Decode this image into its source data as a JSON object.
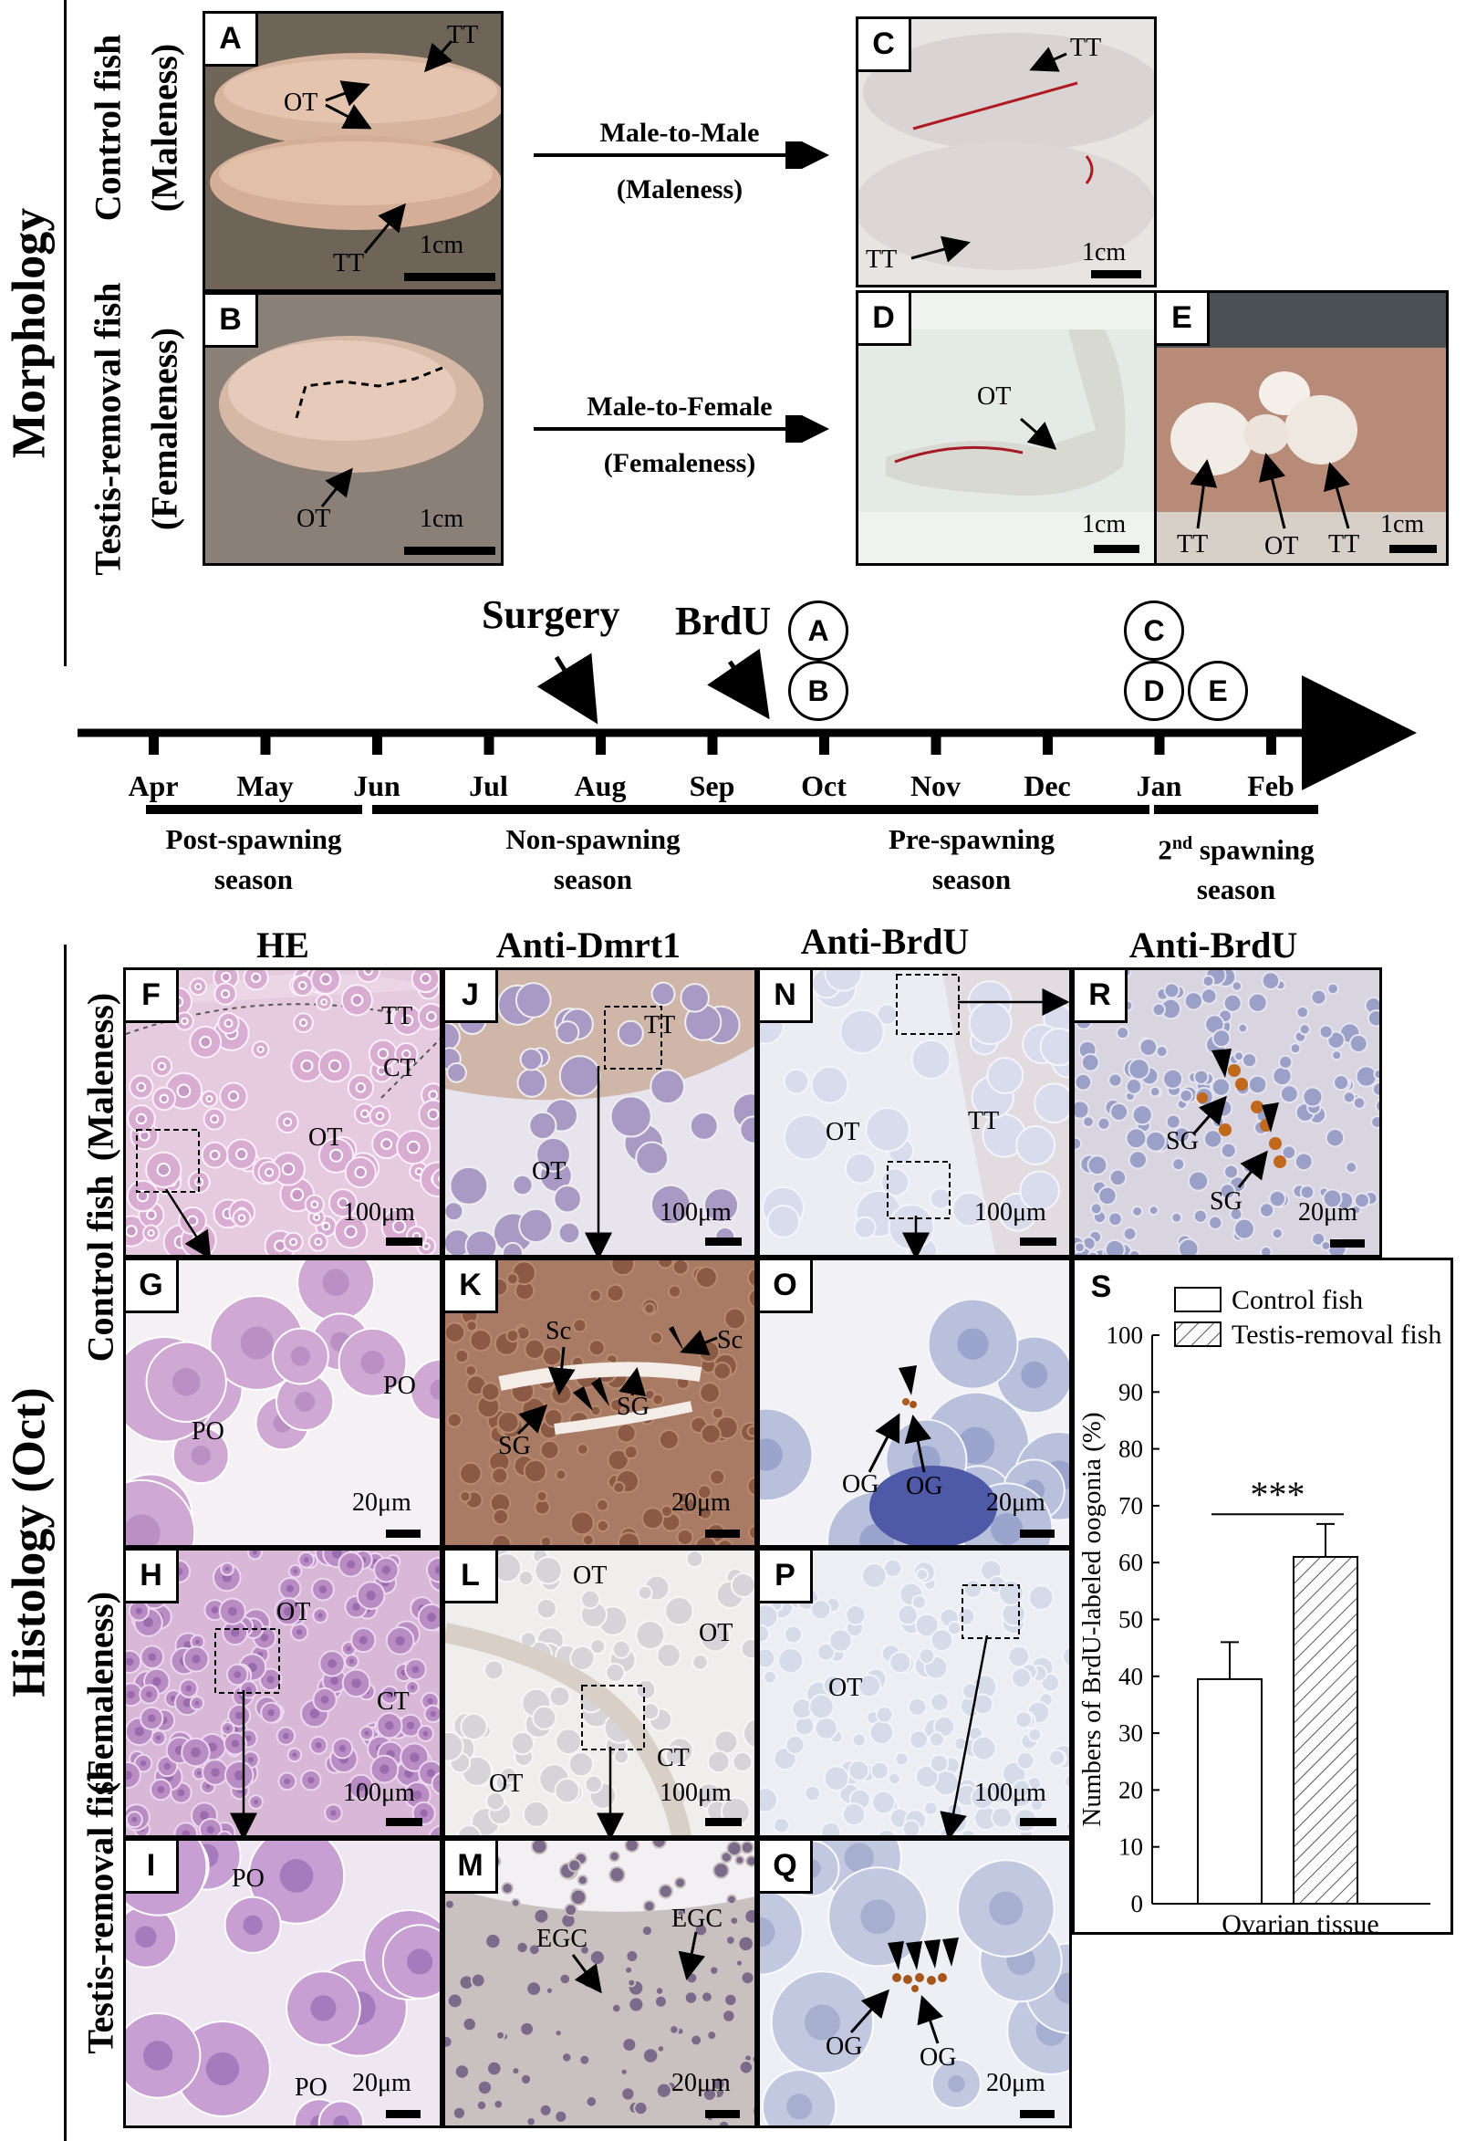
{
  "side_labels": {
    "morphology": "Morphology",
    "histology": "Histology (Oct)"
  },
  "row_labels": {
    "control_fish": "Control  fish",
    "maleness": "(Maleness)",
    "testis_removal_fish": "Testis-removal  fish",
    "femaleness": "(Femaleness)"
  },
  "morphology": {
    "A": {
      "label": "A",
      "tags": [
        "TT",
        "OT",
        "TT"
      ],
      "scale": "1cm"
    },
    "B": {
      "label": "B",
      "tags": [
        "OT"
      ],
      "scale": "1cm"
    },
    "C": {
      "label": "C",
      "tags": [
        "TT",
        "TT"
      ],
      "scale": "1cm"
    },
    "D": {
      "label": "D",
      "tags": [
        "OT"
      ],
      "scale": "1cm"
    },
    "E": {
      "label": "E",
      "tags": [
        "TT",
        "OT",
        "TT"
      ],
      "scale": "1cm"
    },
    "arrow_top": {
      "line1": "Male-to-Male",
      "line2": "(Maleness)"
    },
    "arrow_bottom": {
      "line1": "Male-to-Female",
      "line2": "(Femaleness)"
    }
  },
  "timeline": {
    "surgery": "Surgery",
    "brdu": "BrdU",
    "circles": [
      "A",
      "B",
      "C",
      "D",
      "E"
    ],
    "months": [
      "Apr",
      "May",
      "Jun",
      "Jul",
      "Aug",
      "Sep",
      "Oct",
      "Nov",
      "Dec",
      "Jan",
      "Feb"
    ],
    "seasons": [
      {
        "line1": "Post-spawning",
        "line2": "season"
      },
      {
        "line1": "Non-spawning",
        "line2": "season"
      },
      {
        "line1": "Pre-spawning",
        "line2": "season"
      },
      {
        "line1": "2",
        "sup": "nd",
        "line1b": " spawning",
        "line2": "season"
      }
    ]
  },
  "histology": {
    "headers": [
      "HE",
      "Anti-Dmrt1",
      "Anti-BrdU",
      "Anti-BrdU"
    ],
    "F": {
      "label": "F",
      "tags": [
        "TT",
        "CT",
        "OT"
      ],
      "scale": "100μm"
    },
    "G": {
      "label": "G",
      "tags": [
        "PO",
        "PO"
      ],
      "scale": "20μm"
    },
    "H": {
      "label": "H",
      "tags": [
        "OT",
        "CT"
      ],
      "scale": "100μm"
    },
    "I": {
      "label": "I",
      "tags": [
        "PO",
        "PO"
      ],
      "scale": "20μm"
    },
    "J": {
      "label": "J",
      "tags": [
        "TT",
        "OT"
      ],
      "scale": "100μm"
    },
    "K": {
      "label": "K",
      "tags": [
        "Sc",
        "Sc",
        "SG",
        "SG"
      ],
      "scale": "20μm"
    },
    "L": {
      "label": "L",
      "tags": [
        "OT",
        "OT",
        "OT",
        "CT"
      ],
      "scale": "100μm"
    },
    "M": {
      "label": "M",
      "tags": [
        "EGC",
        "EGC"
      ],
      "scale": "20μm"
    },
    "N": {
      "label": "N",
      "tags": [
        "TT",
        "OT"
      ],
      "scale": "100μm"
    },
    "O": {
      "label": "O",
      "tags": [
        "OG",
        "OG"
      ],
      "scale": "20μm"
    },
    "P": {
      "label": "P",
      "tags": [
        "OT"
      ],
      "scale": "100μm"
    },
    "Q": {
      "label": "Q",
      "tags": [
        "OG",
        "OG"
      ],
      "scale": "20μm"
    },
    "R": {
      "label": "R",
      "tags": [
        "SG",
        "SG"
      ],
      "scale": "20μm"
    }
  },
  "chart_data": {
    "type": "bar",
    "panel_label": "S",
    "categories": [
      "Ovarian tissue"
    ],
    "series": [
      {
        "name": "Control fish",
        "values": [
          39.5
        ],
        "error": [
          6.5
        ],
        "pattern": "open"
      },
      {
        "name": "Testis-removal fish",
        "values": [
          61
        ],
        "error": [
          5.8
        ],
        "pattern": "hatched"
      }
    ],
    "ylabel": "Numbers of BrdU-labeled oogonia (%)",
    "xlabel": "Ovarian tissue",
    "ylim": [
      0,
      100
    ],
    "yticks": [
      0,
      10,
      20,
      30,
      40,
      50,
      60,
      70,
      80,
      90,
      100
    ],
    "significance": "***",
    "legend_position": "top",
    "grid": false
  }
}
